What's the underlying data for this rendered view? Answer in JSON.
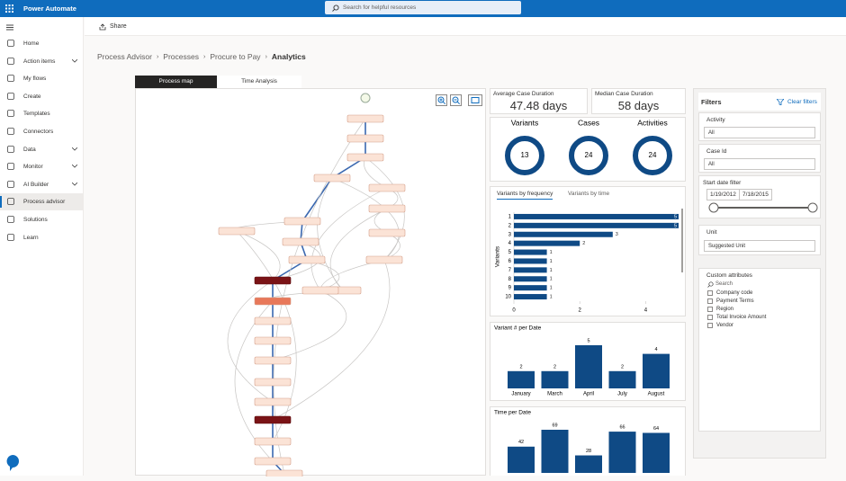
{
  "app": {
    "title": "Power Automate",
    "search": "Search for helpful resources"
  },
  "nav": [
    "Home",
    "Action items",
    "My flows",
    "Create",
    "Templates",
    "Connectors",
    "Data",
    "Monitor",
    "AI Builder",
    "Process advisor",
    "Solutions",
    "Learn"
  ],
  "command": "Share",
  "breadcrumb": [
    "Process Advisor",
    "Processes",
    "Procure to Pay",
    "Analytics"
  ],
  "tabs": [
    "Process map",
    "Time Analysis"
  ],
  "kpis": [
    {
      "label": "Average Case Duration",
      "value": "47.48 days"
    },
    {
      "label": "Median Case Duration",
      "value": "58 days"
    }
  ],
  "stats": [
    {
      "label": "Variants",
      "value": 13
    },
    {
      "label": "Cases",
      "value": 24
    },
    {
      "label": "Activities",
      "value": 24
    }
  ],
  "variant_tabs": [
    "Variants by frequency",
    "Variants by time"
  ],
  "chart_data": [
    {
      "type": "bar",
      "orientation": "horizontal",
      "y_label": "Variants",
      "categories": [
        "1",
        "2",
        "3",
        "4",
        "5",
        "6",
        "7",
        "8",
        "9",
        "10"
      ],
      "values": [
        5,
        5,
        3,
        2,
        1,
        1,
        1,
        1,
        1,
        1
      ],
      "color": "#0f4a85",
      "xlim": [
        0,
        5
      ],
      "xticks": [
        0,
        2,
        4
      ]
    },
    {
      "type": "bar",
      "title": "Variant # per Date",
      "categories": [
        "January",
        "March",
        "April",
        "July",
        "August"
      ],
      "values": [
        2,
        2,
        5,
        2,
        4
      ],
      "color": "#0f4a85"
    },
    {
      "type": "bar",
      "title": "Time per Date",
      "categories": [
        null,
        null,
        null,
        null,
        null
      ],
      "values": [
        42,
        69,
        28,
        66,
        64
      ],
      "color": "#0f4a85"
    }
  ],
  "filters": {
    "title": "Filters",
    "clear": "Clear filters",
    "activity": {
      "label": "Activity",
      "value": "All"
    },
    "case_id": {
      "label": "Case Id",
      "value": "All"
    },
    "date": {
      "label": "Start date filter",
      "start": "1/19/2012",
      "end": "7/18/2015"
    },
    "unit": {
      "label": "Unit",
      "value": "Suggested Unit"
    },
    "custom": {
      "label": "Custom attributes",
      "search": "Search",
      "items": [
        "Company code",
        "Payment Terms",
        "Region",
        "Total Invoice Amount",
        "Vendor"
      ]
    }
  }
}
